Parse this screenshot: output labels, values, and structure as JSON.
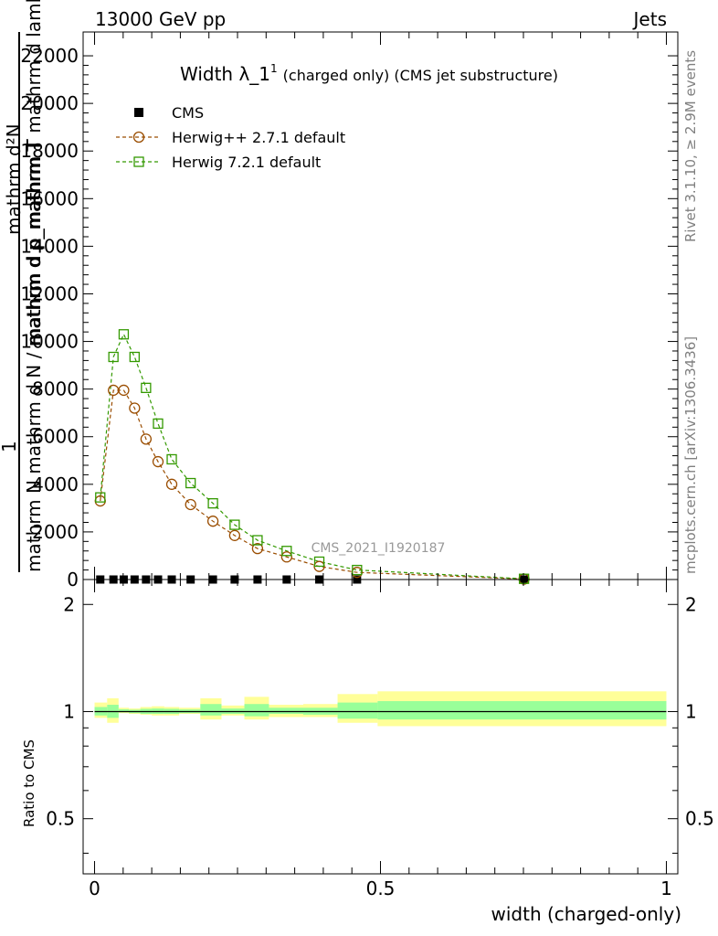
{
  "header": {
    "left": "13000 GeV pp",
    "right": "Jets"
  },
  "side_labels": {
    "rivet": "Rivet 3.1.10, ≥ 2.9M events",
    "mcplots": "mcplots.cern.ch [arXiv:1306.3436]"
  },
  "watermark": "CMS_2021_I1920187",
  "chart_data": [
    {
      "type": "line",
      "title_main": "Width λ_1",
      "title_sup": "1",
      "title_tail": "(charged only) (CMS jet substructure)",
      "ylabel_lines": [
        "mathrm d²N",
        "1",
        "mathrm d p_mathrm T mathrm d lambda",
        "mathrm N mathrm d N / mathrm d p_mathrm T"
      ],
      "ylim": [
        0,
        23000
      ],
      "yticks": [
        0,
        2000,
        4000,
        6000,
        8000,
        10000,
        12000,
        14000,
        16000,
        18000,
        20000,
        22000
      ],
      "xlim": [
        -0.02,
        1.02
      ],
      "legend_position": "top-left",
      "series": [
        {
          "name": "CMS",
          "color": "#000000",
          "marker": "filled-square",
          "x": [
            0.01,
            0.033,
            0.051,
            0.07,
            0.09,
            0.111,
            0.135,
            0.168,
            0.207,
            0.245,
            0.285,
            0.336,
            0.393,
            0.459,
            0.751
          ],
          "y": [
            0,
            0,
            0,
            0,
            0,
            0,
            0,
            0,
            0,
            0,
            0,
            0,
            0,
            0,
            0
          ]
        },
        {
          "name": "Herwig++ 2.7.1 default",
          "color": "#9a4d00",
          "marker": "open-circle",
          "x": [
            0.01,
            0.033,
            0.051,
            0.07,
            0.09,
            0.111,
            0.135,
            0.168,
            0.207,
            0.245,
            0.285,
            0.336,
            0.393,
            0.459,
            0.751
          ],
          "y": [
            3300,
            7950,
            7950,
            7200,
            5900,
            4950,
            4000,
            3150,
            2450,
            1850,
            1300,
            950,
            550,
            300,
            20
          ]
        },
        {
          "name": "Herwig 7.2.1 default",
          "color": "#339900",
          "marker": "open-square",
          "x": [
            0.01,
            0.033,
            0.051,
            0.07,
            0.09,
            0.111,
            0.135,
            0.168,
            0.207,
            0.245,
            0.285,
            0.336,
            0.393,
            0.459,
            0.751
          ],
          "y": [
            3450,
            9350,
            10300,
            9350,
            8050,
            6550,
            5050,
            4050,
            3200,
            2300,
            1650,
            1200,
            750,
            400,
            30
          ]
        }
      ]
    },
    {
      "type": "area",
      "ylabel": "Ratio to CMS",
      "xlabel": "width (charged-only)",
      "ylim": [
        0.35,
        2.35
      ],
      "log_scale": true,
      "yticks": [
        0.5,
        1,
        2
      ],
      "xticks": [
        0,
        0.5,
        1
      ],
      "xticklabels": [
        "0",
        "0.5",
        "1"
      ],
      "xlim": [
        -0.02,
        1.02
      ],
      "bands": {
        "edges": [
          0.0,
          0.022,
          0.042,
          0.06,
          0.08,
          0.1,
          0.122,
          0.148,
          0.185,
          0.222,
          0.262,
          0.305,
          0.365,
          0.425,
          0.495,
          1.0
        ],
        "yellow_lo": [
          0.96,
          0.93,
          0.99,
          0.985,
          0.98,
          0.975,
          0.975,
          0.985,
          0.95,
          0.975,
          0.95,
          0.965,
          0.965,
          0.93,
          0.91
        ],
        "yellow_hi": [
          1.06,
          1.09,
          1.025,
          1.02,
          1.03,
          1.035,
          1.03,
          1.025,
          1.09,
          1.04,
          1.1,
          1.045,
          1.05,
          1.12,
          1.14
        ],
        "green_lo": [
          0.975,
          0.96,
          0.995,
          0.99,
          0.985,
          0.985,
          0.985,
          0.99,
          0.975,
          0.985,
          0.97,
          0.985,
          0.98,
          0.955,
          0.95
        ],
        "green_hi": [
          1.03,
          1.045,
          1.015,
          1.012,
          1.018,
          1.02,
          1.018,
          1.014,
          1.05,
          1.02,
          1.05,
          1.025,
          1.025,
          1.06,
          1.07
        ]
      }
    }
  ]
}
